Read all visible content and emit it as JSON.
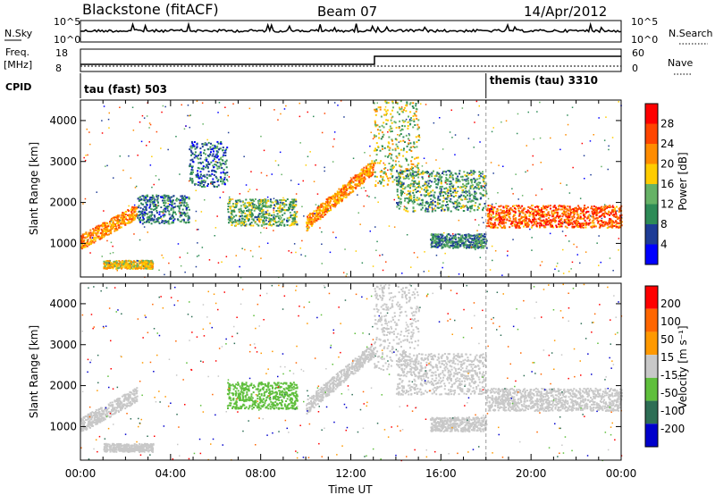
{
  "header": {
    "station": "Blackstone (fitACF)",
    "beam": "Beam 07",
    "date": "14/Apr/2012"
  },
  "noise_panel": {
    "left_label": "N.Sky",
    "right_label": "N.Search",
    "left_ticks": [
      "10^5",
      "10^0"
    ],
    "right_ticks": [
      "10^5",
      "10^0"
    ]
  },
  "freq_panel": {
    "left_label_line1": "Freq.",
    "left_label_line2": "[MHz]",
    "left_ticks": [
      "18",
      "8"
    ],
    "right_ticks": [
      "60",
      "0"
    ],
    "right_label": "Nave"
  },
  "cpid": {
    "label": "CPID",
    "modes": [
      {
        "name": "tau (fast) 503",
        "start_hour": 0
      },
      {
        "name": "themis (tau) 3310",
        "start_hour": 18
      }
    ]
  },
  "colors": {
    "power": [
      "#0000ff",
      "#1e3c96",
      "#2e8b57",
      "#66b266",
      "#ffcc00",
      "#ff8c00",
      "#ff4500",
      "#ff0000"
    ],
    "velocity": [
      "#0000cc",
      "#2e6e55",
      "#5fbf3c",
      "#c8c8c8",
      "#ff9900",
      "#ff6600",
      "#ff0000"
    ]
  },
  "chart_data": [
    {
      "type": "heatmap",
      "name": "power",
      "ylabel": "Slant Range [km]",
      "ylim": [
        180,
        4500
      ],
      "yticks": [
        1000,
        2000,
        3000,
        4000
      ],
      "colorbar_label": "Power [dB]",
      "colorbar_ticks": [
        "28",
        "24",
        "20",
        "16",
        "12",
        "8",
        "4"
      ],
      "scale_range": [
        0,
        32
      ],
      "structures": [
        {
          "t": [
            0.0,
            2.5
          ],
          "r": [
            1050,
            1800
          ],
          "level": 22,
          "kind": "arc"
        },
        {
          "t": [
            1.0,
            3.2
          ],
          "r": [
            400,
            600
          ],
          "level": 18,
          "kind": "band"
        },
        {
          "t": [
            2.5,
            4.8
          ],
          "r": [
            1500,
            2200
          ],
          "level": 9,
          "kind": "band"
        },
        {
          "t": [
            4.8,
            6.5
          ],
          "r": [
            2400,
            3500
          ],
          "level": 8,
          "kind": "band"
        },
        {
          "t": [
            6.5,
            9.6
          ],
          "r": [
            1450,
            2100
          ],
          "level": 13,
          "kind": "band"
        },
        {
          "t": [
            10.0,
            13.0
          ],
          "r": [
            1500,
            2900
          ],
          "level": 22,
          "kind": "arc"
        },
        {
          "t": [
            13.0,
            15.0
          ],
          "r": [
            2400,
            4500
          ],
          "level": 16,
          "kind": "band"
        },
        {
          "t": [
            14.0,
            18.0
          ],
          "r": [
            1800,
            2800
          ],
          "level": 12,
          "kind": "band"
        },
        {
          "t": [
            18.0,
            24.0
          ],
          "r": [
            1400,
            1950
          ],
          "level": 25,
          "kind": "band"
        },
        {
          "t": [
            15.5,
            18.0
          ],
          "r": [
            900,
            1250
          ],
          "level": 10,
          "kind": "band"
        }
      ]
    },
    {
      "type": "heatmap",
      "name": "velocity",
      "ylabel": "Slant Range [km]",
      "ylim": [
        180,
        4500
      ],
      "yticks": [
        1000,
        2000,
        3000,
        4000
      ],
      "xlabel": "Time UT",
      "xticks": [
        "00:00",
        "04:00",
        "08:00",
        "12:00",
        "16:00",
        "20:00",
        "00:00"
      ],
      "colorbar_label": "Velocity [m s⁻¹]",
      "colorbar_ticks": [
        "200",
        "100",
        "50",
        "15",
        "-15",
        "-50",
        "-100",
        "-200"
      ],
      "scale_range": [
        -250,
        250
      ],
      "structures": [
        {
          "t": [
            0.0,
            2.5
          ],
          "r": [
            1050,
            1800
          ],
          "level": 0,
          "kind": "arc"
        },
        {
          "t": [
            1.0,
            3.2
          ],
          "r": [
            400,
            600
          ],
          "level": 0,
          "kind": "band"
        },
        {
          "t": [
            6.5,
            9.6
          ],
          "r": [
            1450,
            2100
          ],
          "level": -60,
          "kind": "band"
        },
        {
          "t": [
            10.0,
            13.0
          ],
          "r": [
            1500,
            2900
          ],
          "level": 0,
          "kind": "arc"
        },
        {
          "t": [
            13.0,
            15.0
          ],
          "r": [
            2400,
            4500
          ],
          "level": 0,
          "kind": "band"
        },
        {
          "t": [
            14.0,
            18.0
          ],
          "r": [
            1800,
            2800
          ],
          "level": 5,
          "kind": "band"
        },
        {
          "t": [
            18.0,
            24.0
          ],
          "r": [
            1400,
            1950
          ],
          "level": 0,
          "kind": "band"
        },
        {
          "t": [
            15.5,
            18.0
          ],
          "r": [
            900,
            1250
          ],
          "level": 10,
          "kind": "band"
        }
      ]
    }
  ]
}
